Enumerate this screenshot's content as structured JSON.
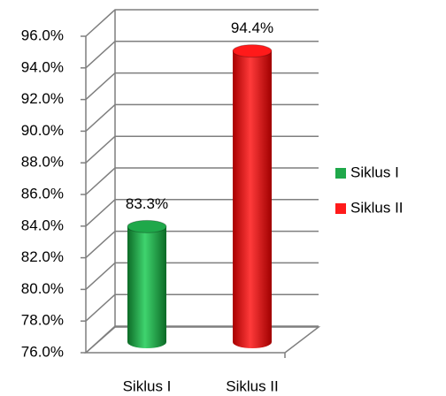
{
  "chart_data": {
    "type": "cylinder_bar",
    "categories": [
      "Siklus I",
      "Siklus II"
    ],
    "series": [
      {
        "name": "Siklus I",
        "color": "#1fa84a",
        "values": [
          83.3,
          null
        ],
        "value_labels": [
          "83.3%",
          null
        ]
      },
      {
        "name": "Siklus II",
        "color": "#ff1a1a",
        "values": [
          null,
          94.4
        ],
        "value_labels": [
          null,
          "94.4%"
        ]
      }
    ],
    "ylim": [
      76,
      96
    ],
    "yticks": [
      {
        "value": 76,
        "label": "76.0%"
      },
      {
        "value": 78,
        "label": "78.0%"
      },
      {
        "value": 80,
        "label": "80.0%"
      },
      {
        "value": 82,
        "label": "82.0%"
      },
      {
        "value": 84,
        "label": "84.0%"
      },
      {
        "value": 86,
        "label": "86.0%"
      },
      {
        "value": 88,
        "label": "88.0%"
      },
      {
        "value": 90,
        "label": "90.0%"
      },
      {
        "value": 92,
        "label": "92.0%"
      },
      {
        "value": 94,
        "label": "94.0%"
      },
      {
        "value": 96,
        "label": "96.0%"
      }
    ],
    "grid": true,
    "legend": "right"
  }
}
